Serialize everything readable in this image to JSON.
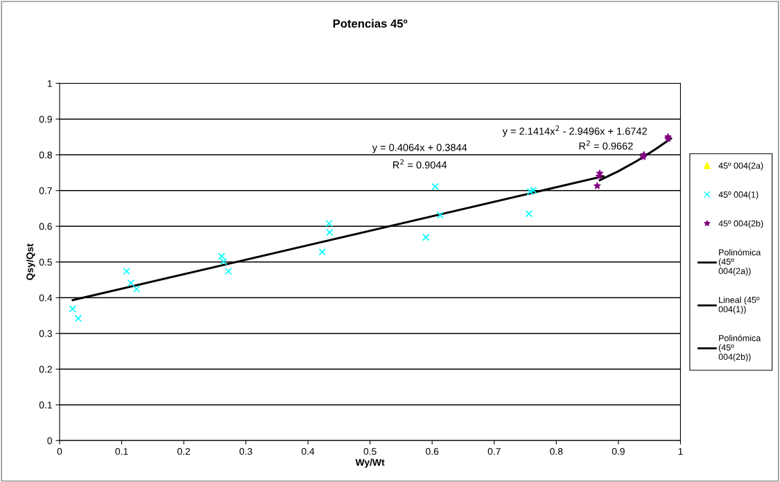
{
  "chart_data": {
    "type": "scatter",
    "title": "Potencias 45º",
    "xlabel": "Wy/Wt",
    "ylabel": "Qsy/Qst",
    "xlim": [
      0,
      1
    ],
    "ylim": [
      0,
      1
    ],
    "xticks": [
      0,
      0.1,
      0.2,
      0.3,
      0.4,
      0.5,
      0.6,
      0.7,
      0.8,
      0.9,
      1
    ],
    "yticks": [
      0,
      0.1,
      0.2,
      0.3,
      0.4,
      0.5,
      0.6,
      0.7,
      0.8,
      0.9,
      1
    ],
    "grid": "y",
    "legend": "right",
    "series": [
      {
        "name": "45º 004(2a)",
        "color": "#ffff00",
        "marker": "triangle"
      },
      {
        "name": "45º 004(1)",
        "color": "#00ffff",
        "marker": "cross",
        "x": [
          0.021,
          0.03,
          0.108,
          0.115,
          0.124,
          0.261,
          0.264,
          0.272,
          0.423,
          0.434,
          0.435,
          0.59,
          0.605,
          0.613,
          0.756,
          0.758,
          0.763
        ],
        "values": [
          0.369,
          0.342,
          0.474,
          0.441,
          0.424,
          0.516,
          0.501,
          0.474,
          0.528,
          0.608,
          0.583,
          0.569,
          0.711,
          0.631,
          0.635,
          0.697,
          0.701
        ]
      },
      {
        "name": "45º 004(2b)",
        "color": "#800080",
        "marker": "star",
        "x": [
          0.866,
          0.87,
          0.869,
          0.941,
          0.94,
          0.98,
          0.98
        ],
        "values": [
          0.713,
          0.748,
          0.74,
          0.8,
          0.794,
          0.85,
          0.845
        ]
      },
      {
        "name": "Polinómica\n(45º\n004(2a))",
        "type": "line",
        "color": "#000000",
        "marker": "none"
      },
      {
        "name": "Lineal (45º\n004(1))",
        "type": "line",
        "color": "#000000",
        "marker": "none",
        "x": [
          0.021,
          0.876
        ],
        "values": [
          0.393,
          0.74
        ]
      },
      {
        "name": "Polinómica\n(45º\n004(2b))",
        "type": "line",
        "color": "#000000",
        "marker": "none",
        "x": [
          0.87,
          0.9,
          0.93,
          0.96,
          0.985
        ],
        "values": [
          0.729,
          0.754,
          0.783,
          0.816,
          0.846
        ]
      }
    ],
    "annotations": [
      "y = 0.4064x + 0.3844",
      "R$^{2}$ = 0.9044",
      "y = 2.1414x$^{2}$ - 2.9496x + 1.6742",
      "R$^{2}$ = 0.9662"
    ]
  }
}
